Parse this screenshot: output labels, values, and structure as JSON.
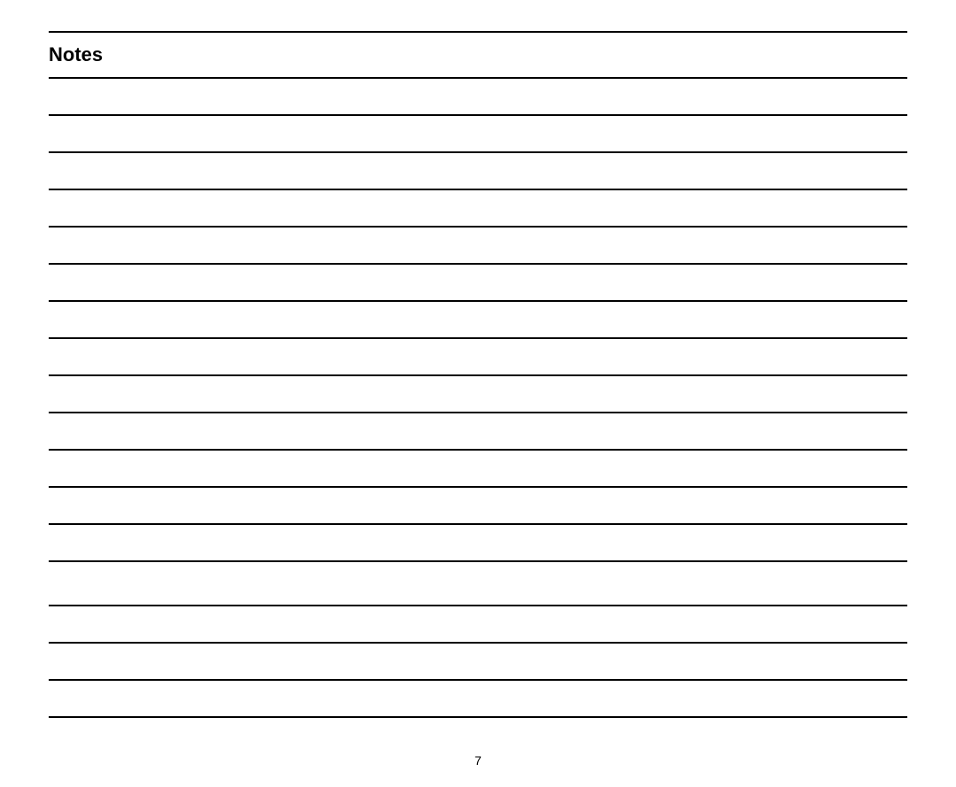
{
  "page": {
    "title": "Notes",
    "pageNumber": "7",
    "lineCount": 18,
    "lineColor": "#000000",
    "lineThicknessPx": 2,
    "backgroundColor": "#ffffff",
    "titleFontSizePx": 22,
    "titleFontWeight": 700,
    "pageNumberFontSizePx": 14,
    "lineSpacingPx": 40,
    "extraGapAfterLineIndices": [
      13
    ]
  }
}
